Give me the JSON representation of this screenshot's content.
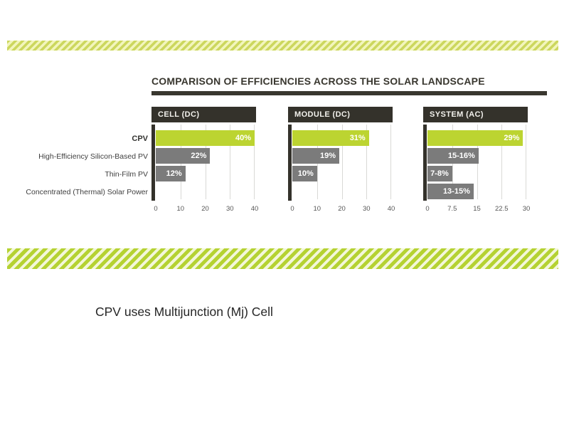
{
  "slide": {
    "caption": "CPV uses Multijunction (Mj) Cell"
  },
  "chart": {
    "title": "COMPARISON OF EFFICIENCIES ACROSS THE SOLAR LANDSCAPE",
    "row_labels": [
      "CPV",
      "High-Efficiency Silicon-Based PV",
      "Thin-Film PV",
      "Concentrated (Thermal) Solar Power"
    ],
    "panels": [
      {
        "header": "CELL (DC)",
        "axis_max": 40,
        "ticks": [
          "0",
          "10",
          "20",
          "30",
          "40"
        ],
        "bars": [
          {
            "value": 40,
            "label": "40%",
            "highlight": true
          },
          {
            "value": 22,
            "label": "22%",
            "highlight": false
          },
          {
            "value": 12,
            "label": "12%",
            "highlight": false
          },
          {
            "value": null,
            "label": "",
            "highlight": false
          }
        ]
      },
      {
        "header": "MODULE (DC)",
        "axis_max": 40,
        "ticks": [
          "0",
          "10",
          "20",
          "30",
          "40"
        ],
        "bars": [
          {
            "value": 31,
            "label": "31%",
            "highlight": true
          },
          {
            "value": 19,
            "label": "19%",
            "highlight": false
          },
          {
            "value": 10,
            "label": "10%",
            "highlight": false
          },
          {
            "value": null,
            "label": "",
            "highlight": false
          }
        ]
      },
      {
        "header": "SYSTEM (AC)",
        "axis_max": 30,
        "ticks": [
          "0",
          "7.5",
          "15",
          "22.5",
          "30"
        ],
        "bars": [
          {
            "value": 29,
            "label": "29%",
            "highlight": true
          },
          {
            "value": 15.5,
            "label": "15-16%",
            "highlight": false
          },
          {
            "value": 7.5,
            "label": "7-8%",
            "highlight": false
          },
          {
            "value": 14,
            "label": "13-15%",
            "highlight": false
          }
        ]
      }
    ],
    "colors": {
      "highlight_green": "#bcd431",
      "bar_gray": "#7b7b7b",
      "header_bg": "#34322b",
      "stripe_green": "#b5d232",
      "stripe_pale": "#f3f7da"
    }
  },
  "chart_data": [
    {
      "type": "bar",
      "orientation": "horizontal",
      "title": "CELL (DC)",
      "categories": [
        "CPV",
        "High-Efficiency Silicon-Based PV",
        "Thin-Film PV",
        "Concentrated (Thermal) Solar Power"
      ],
      "values": [
        40,
        22,
        12,
        null
      ],
      "data_labels": [
        "40%",
        "22%",
        "12%",
        null
      ],
      "xlim": [
        0,
        40
      ],
      "xticks": [
        0,
        10,
        20,
        30,
        40
      ],
      "unit": "%",
      "grid": true,
      "highlight_series": "CPV"
    },
    {
      "type": "bar",
      "orientation": "horizontal",
      "title": "MODULE (DC)",
      "categories": [
        "CPV",
        "High-Efficiency Silicon-Based PV",
        "Thin-Film PV",
        "Concentrated (Thermal) Solar Power"
      ],
      "values": [
        31,
        19,
        10,
        null
      ],
      "data_labels": [
        "31%",
        "19%",
        "10%",
        null
      ],
      "xlim": [
        0,
        40
      ],
      "xticks": [
        0,
        10,
        20,
        30,
        40
      ],
      "unit": "%",
      "grid": true,
      "highlight_series": "CPV"
    },
    {
      "type": "bar",
      "orientation": "horizontal",
      "title": "SYSTEM (AC)",
      "categories": [
        "CPV",
        "High-Efficiency Silicon-Based PV",
        "Thin-Film PV",
        "Concentrated (Thermal) Solar Power"
      ],
      "values": [
        29,
        15.5,
        7.5,
        14
      ],
      "data_labels": [
        "29%",
        "15-16%",
        "7-8%",
        "13-15%"
      ],
      "xlim": [
        0,
        30
      ],
      "xticks": [
        0,
        7.5,
        15,
        22.5,
        30
      ],
      "unit": "%",
      "grid": true,
      "highlight_series": "CPV"
    }
  ]
}
